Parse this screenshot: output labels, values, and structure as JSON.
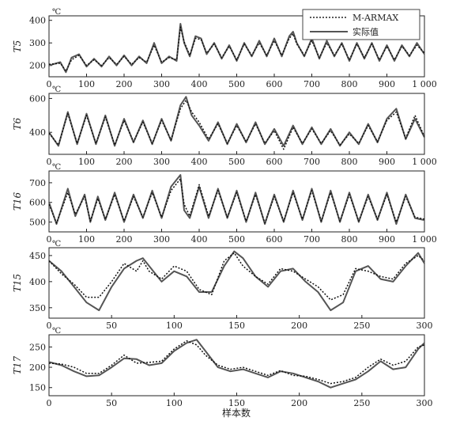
{
  "figure": {
    "xlabel": "样本数"
  },
  "legend": {
    "entries": [
      {
        "label": "M-ARMAX",
        "style": "dotted"
      },
      {
        "label": "实际值",
        "style": "solid"
      }
    ],
    "placement": "top-right"
  },
  "chart_data": [
    {
      "type": "line",
      "ylabel": "T5",
      "unit": "℃",
      "xlim": [
        0,
        1000
      ],
      "ylim": [
        150,
        420
      ],
      "xticks": [
        0,
        100,
        200,
        300,
        400,
        500,
        600,
        700,
        800,
        900
      ],
      "xticklabels": [
        "0",
        "100",
        "200",
        "300",
        "400",
        "500",
        "600",
        "700",
        "800",
        "900"
      ],
      "last_xtick_label": "1 000",
      "yticks": [
        200,
        300,
        400
      ],
      "x": [
        0,
        30,
        45,
        60,
        80,
        100,
        120,
        140,
        160,
        180,
        200,
        220,
        240,
        260,
        280,
        300,
        320,
        340,
        350,
        360,
        375,
        390,
        405,
        420,
        440,
        460,
        480,
        500,
        520,
        540,
        560,
        580,
        600,
        620,
        640,
        650,
        660,
        680,
        700,
        720,
        740,
        760,
        780,
        800,
        820,
        840,
        860,
        880,
        900,
        920,
        940,
        960,
        980,
        1000
      ],
      "series": [
        {
          "name": "实际值",
          "style": "solid",
          "values": [
            200,
            215,
            170,
            235,
            250,
            195,
            230,
            195,
            240,
            200,
            245,
            200,
            240,
            210,
            300,
            210,
            240,
            220,
            385,
            300,
            240,
            330,
            320,
            250,
            300,
            230,
            290,
            220,
            300,
            240,
            310,
            240,
            320,
            240,
            330,
            350,
            300,
            240,
            320,
            230,
            310,
            240,
            300,
            220,
            300,
            230,
            300,
            220,
            290,
            220,
            290,
            240,
            300,
            250
          ]
        },
        {
          "name": "M-ARMAX",
          "style": "dotted",
          "values": [
            205,
            210,
            175,
            225,
            245,
            200,
            225,
            200,
            235,
            205,
            240,
            205,
            235,
            215,
            290,
            215,
            235,
            225,
            370,
            305,
            245,
            320,
            315,
            255,
            295,
            235,
            285,
            225,
            295,
            245,
            300,
            245,
            310,
            245,
            320,
            340,
            295,
            245,
            310,
            235,
            300,
            245,
            295,
            225,
            295,
            235,
            295,
            225,
            285,
            225,
            285,
            245,
            290,
            255
          ]
        }
      ]
    },
    {
      "type": "line",
      "ylabel": "T6",
      "unit": "℃",
      "xlim": [
        0,
        1000
      ],
      "ylim": [
        270,
        630
      ],
      "xticks": [
        0,
        100,
        200,
        300,
        400,
        500,
        600,
        700,
        800,
        900
      ],
      "xticklabels": [
        "0",
        "100",
        "200",
        "300",
        "400",
        "500",
        "600",
        "700",
        "800",
        "900"
      ],
      "last_xtick_label": "1 000",
      "yticks": [
        400,
        600
      ],
      "x": [
        0,
        25,
        50,
        75,
        100,
        125,
        150,
        175,
        200,
        225,
        250,
        275,
        300,
        325,
        350,
        365,
        380,
        400,
        425,
        450,
        475,
        500,
        525,
        550,
        575,
        600,
        625,
        650,
        675,
        700,
        725,
        750,
        775,
        800,
        825,
        850,
        875,
        900,
        925,
        950,
        975,
        1000
      ],
      "series": [
        {
          "name": "实际值",
          "style": "solid",
          "values": [
            400,
            320,
            520,
            330,
            510,
            330,
            500,
            320,
            480,
            340,
            470,
            330,
            480,
            350,
            560,
            610,
            500,
            440,
            350,
            460,
            330,
            450,
            340,
            460,
            330,
            420,
            320,
            440,
            330,
            430,
            330,
            420,
            320,
            400,
            330,
            450,
            340,
            480,
            540,
            360,
            480,
            370
          ]
        },
        {
          "name": "M-ARMAX",
          "style": "dotted",
          "values": [
            395,
            325,
            510,
            335,
            500,
            335,
            490,
            325,
            470,
            345,
            460,
            335,
            470,
            355,
            540,
            590,
            520,
            460,
            360,
            450,
            335,
            440,
            345,
            450,
            335,
            410,
            300,
            430,
            335,
            420,
            335,
            410,
            325,
            390,
            335,
            440,
            345,
            470,
            520,
            365,
            500,
            375
          ]
        }
      ]
    },
    {
      "type": "line",
      "ylabel": "T16",
      "unit": "℃",
      "xlim": [
        0,
        1000
      ],
      "ylim": [
        450,
        760
      ],
      "xticks": [
        0,
        100,
        200,
        300,
        400,
        500,
        600,
        700,
        800,
        900
      ],
      "xticklabels": [
        "0",
        "100",
        "200",
        "300",
        "400",
        "500",
        "600",
        "700",
        "800",
        "900"
      ],
      "last_xtick_label": "1 000",
      "yticks": [
        500,
        600,
        700
      ],
      "x": [
        0,
        20,
        50,
        70,
        95,
        110,
        130,
        150,
        175,
        200,
        225,
        250,
        275,
        300,
        325,
        350,
        360,
        375,
        400,
        425,
        450,
        475,
        500,
        525,
        550,
        575,
        600,
        625,
        650,
        675,
        700,
        725,
        750,
        775,
        800,
        825,
        850,
        875,
        900,
        925,
        950,
        975,
        1000
      ],
      "series": [
        {
          "name": "实际值",
          "style": "solid",
          "values": [
            600,
            490,
            670,
            530,
            640,
            500,
            630,
            510,
            650,
            500,
            640,
            520,
            660,
            520,
            680,
            740,
            560,
            520,
            680,
            520,
            670,
            520,
            660,
            500,
            650,
            490,
            640,
            500,
            660,
            510,
            670,
            500,
            660,
            500,
            650,
            500,
            640,
            510,
            650,
            490,
            640,
            520,
            510
          ]
        },
        {
          "name": "M-ARMAX",
          "style": "dotted",
          "values": [
            590,
            495,
            650,
            540,
            630,
            505,
            620,
            515,
            640,
            505,
            630,
            525,
            650,
            525,
            660,
            720,
            590,
            530,
            690,
            530,
            660,
            525,
            650,
            505,
            640,
            495,
            630,
            505,
            650,
            515,
            660,
            505,
            650,
            505,
            640,
            505,
            630,
            515,
            640,
            500,
            630,
            525,
            515
          ]
        }
      ]
    },
    {
      "type": "line",
      "ylabel": "T15",
      "unit": "℃",
      "xlim": [
        0,
        300
      ],
      "ylim": [
        330,
        465
      ],
      "xticks": [
        0,
        50,
        100,
        150,
        200,
        250,
        300
      ],
      "xticklabels": [
        "0",
        "50",
        "100",
        "150",
        "200",
        "250",
        "300"
      ],
      "yticks": [
        350,
        400,
        450
      ],
      "x": [
        0,
        10,
        20,
        30,
        40,
        50,
        60,
        70,
        75,
        80,
        90,
        100,
        110,
        120,
        130,
        140,
        148,
        155,
        165,
        175,
        185,
        195,
        205,
        215,
        225,
        235,
        245,
        255,
        265,
        275,
        285,
        295,
        300
      ],
      "series": [
        {
          "name": "实际值",
          "style": "solid",
          "values": [
            440,
            420,
            390,
            360,
            345,
            390,
            425,
            440,
            445,
            430,
            400,
            420,
            410,
            380,
            380,
            430,
            458,
            445,
            410,
            390,
            420,
            425,
            400,
            380,
            345,
            360,
            420,
            430,
            405,
            400,
            430,
            455,
            435
          ]
        },
        {
          "name": "M-ARMAX",
          "style": "dotted",
          "values": [
            440,
            415,
            395,
            370,
            370,
            400,
            435,
            420,
            440,
            420,
            405,
            430,
            420,
            385,
            375,
            440,
            455,
            430,
            410,
            395,
            425,
            420,
            405,
            390,
            365,
            375,
            425,
            420,
            410,
            405,
            435,
            450,
            440
          ]
        }
      ]
    },
    {
      "type": "line",
      "ylabel": "T17",
      "unit": "℃",
      "xlim": [
        0,
        300
      ],
      "ylim": [
        130,
        280
      ],
      "xticks": [
        0,
        50,
        100,
        150,
        200,
        250,
        300
      ],
      "xticklabels": [
        "0",
        "50",
        "100",
        "150",
        "200",
        "250",
        "300"
      ],
      "yticks": [
        150,
        200,
        250
      ],
      "x": [
        0,
        10,
        20,
        30,
        40,
        50,
        60,
        70,
        80,
        90,
        100,
        110,
        118,
        125,
        135,
        145,
        155,
        165,
        175,
        185,
        195,
        205,
        215,
        225,
        235,
        245,
        255,
        265,
        275,
        285,
        295,
        300
      ],
      "series": [
        {
          "name": "实际值",
          "style": "solid",
          "values": [
            213,
            205,
            190,
            178,
            180,
            200,
            222,
            220,
            205,
            210,
            240,
            260,
            268,
            240,
            200,
            190,
            195,
            185,
            175,
            190,
            185,
            175,
            165,
            150,
            160,
            170,
            190,
            215,
            195,
            200,
            245,
            260
          ]
        },
        {
          "name": "M-ARMAX",
          "style": "dotted",
          "values": [
            210,
            208,
            200,
            185,
            185,
            205,
            230,
            210,
            212,
            215,
            245,
            265,
            255,
            230,
            205,
            195,
            200,
            190,
            180,
            192,
            180,
            178,
            170,
            160,
            165,
            175,
            200,
            220,
            205,
            215,
            250,
            255
          ]
        }
      ]
    }
  ]
}
